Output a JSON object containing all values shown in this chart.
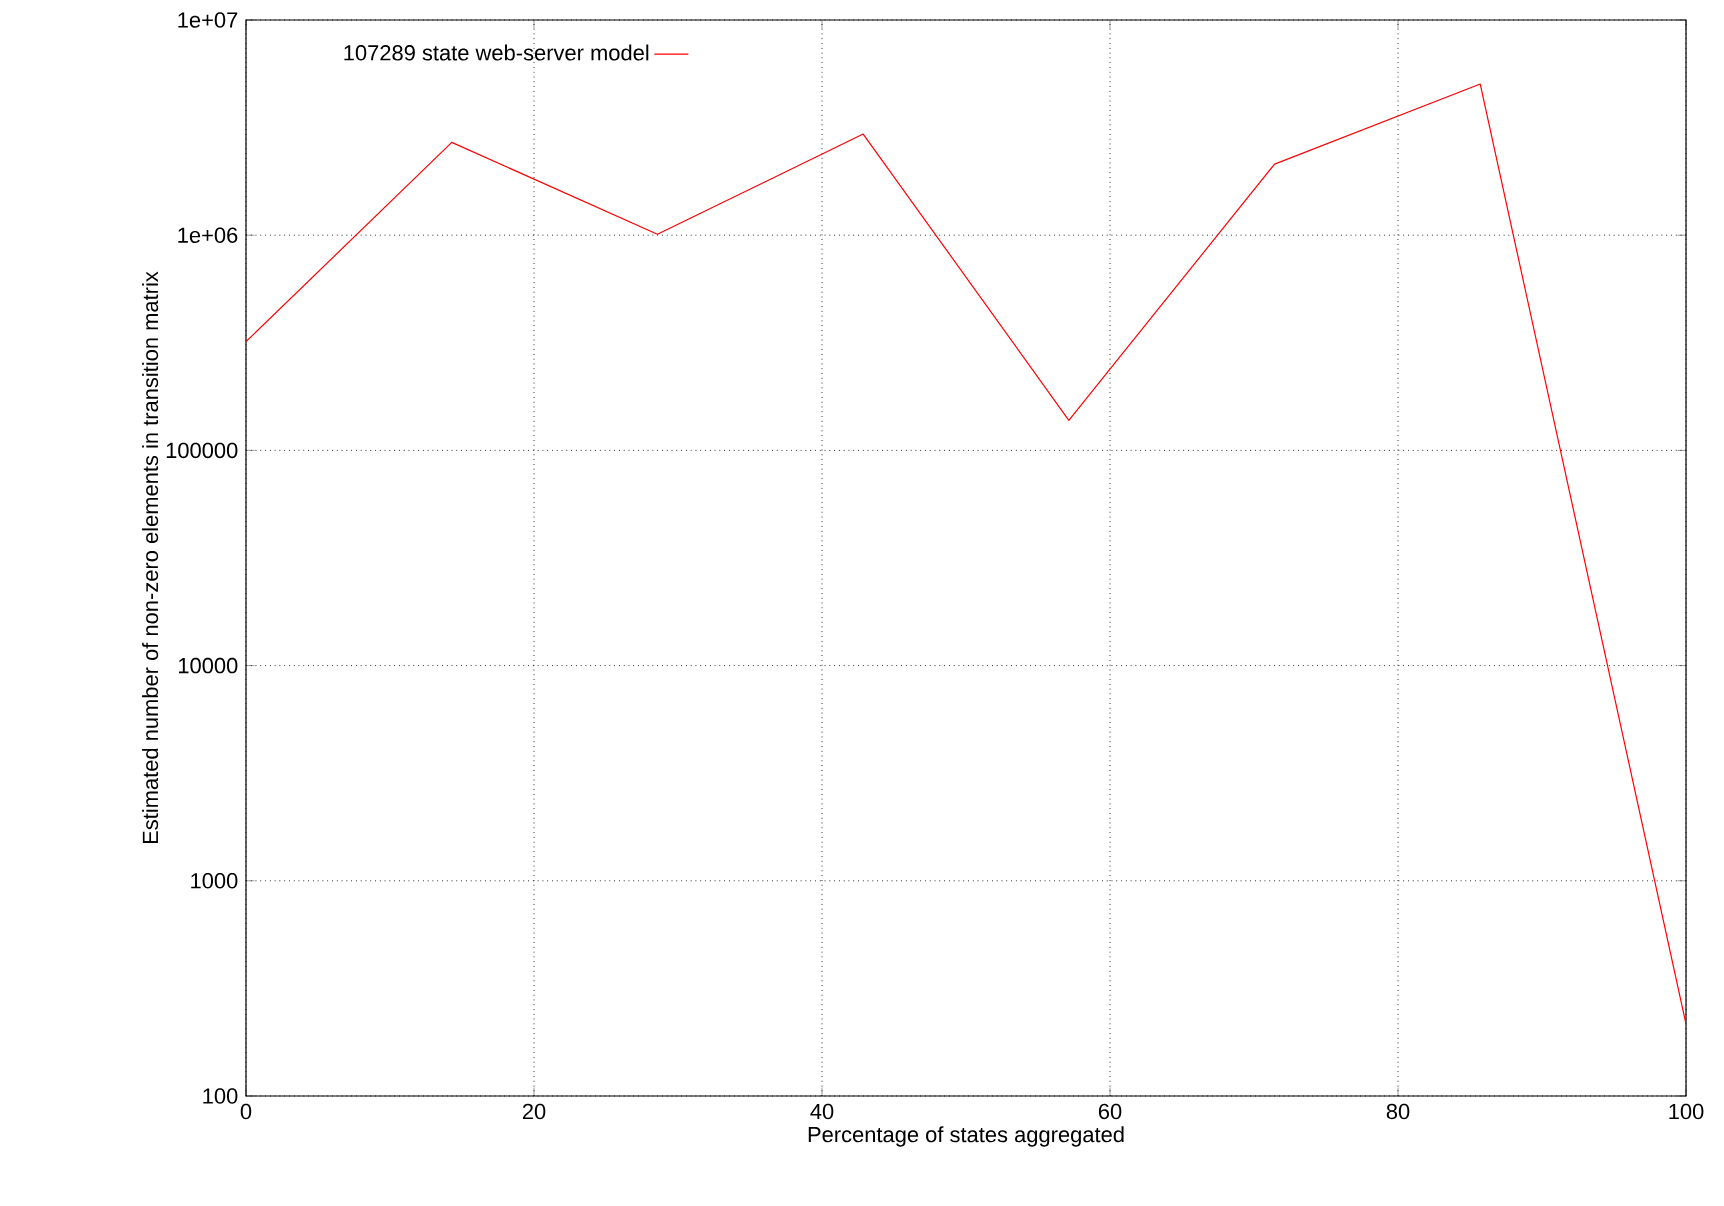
{
  "chart_data": {
    "type": "line",
    "xlabel": "Percentage of states aggregated",
    "ylabel": "Estimated number of non-zero elements in transition matrix",
    "x": [
      0,
      14.29,
      28.57,
      42.86,
      57.14,
      71.43,
      85.71,
      100
    ],
    "series": [
      {
        "name": "107289 state web-server model",
        "color": "#ff0000",
        "values": [
          320000,
          2700000,
          1010000,
          2950000,
          138000,
          2140000,
          5040000,
          216
        ]
      }
    ],
    "log": "y",
    "grid": true,
    "legend": "top left",
    "marker": "none",
    "line_style": "solid",
    "xlim": [
      0,
      100
    ],
    "xticks": [
      0,
      20,
      40,
      60,
      80,
      100
    ],
    "ylim": [
      100,
      10000000
    ],
    "yticks": [
      100,
      1000,
      10000,
      100000,
      {
        "value": 1000000,
        "label": "1e+06"
      },
      {
        "value": 10000000,
        "label": "1e+07"
      }
    ]
  }
}
